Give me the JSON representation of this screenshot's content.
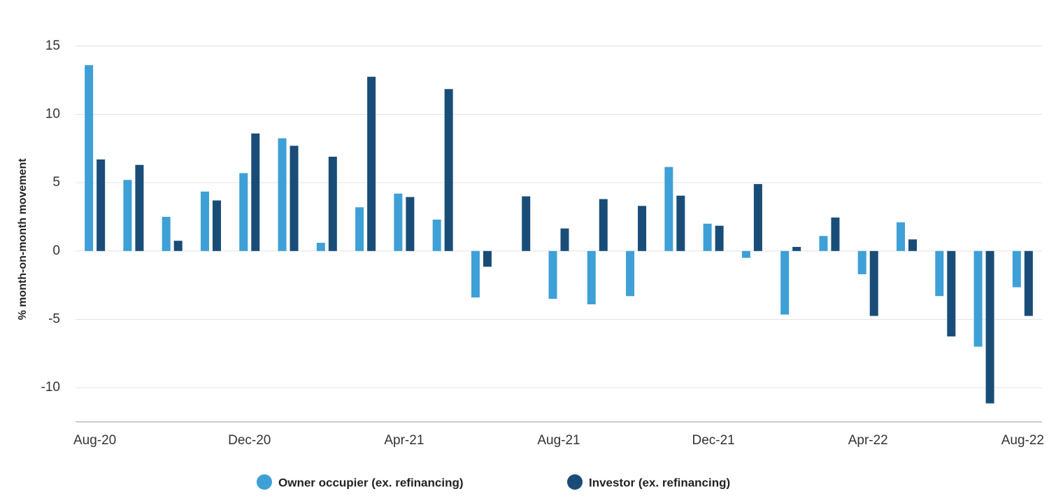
{
  "chart_data": {
    "type": "bar",
    "y_axis_label": "% month-on-month movement",
    "categories": [
      "Aug-20",
      null,
      null,
      null,
      "Dec-20",
      null,
      null,
      null,
      "Apr-21",
      null,
      null,
      null,
      "Aug-21",
      null,
      null,
      null,
      "Dec-21",
      null,
      null,
      null,
      "Apr-22",
      null,
      null,
      null,
      "Aug-22"
    ],
    "series": [
      {
        "name": "Owner occupier (ex. refinancing)",
        "color": "#3ea0d6",
        "values": [
          13.6,
          5.2,
          2.5,
          4.35,
          5.7,
          8.25,
          0.6,
          3.2,
          4.2,
          2.3,
          -3.4,
          0,
          -3.5,
          -3.9,
          -3.3,
          6.15,
          2.0,
          -0.5,
          -4.65,
          1.1,
          -1.7,
          2.1,
          -3.3,
          -7.0,
          -2.65
        ]
      },
      {
        "name": "Investor (ex. refinancing)",
        "color": "#194d78",
        "values": [
          6.7,
          6.3,
          0.75,
          3.7,
          8.6,
          7.7,
          6.9,
          12.75,
          3.95,
          11.85,
          -1.15,
          4.0,
          1.65,
          3.8,
          3.3,
          4.05,
          1.85,
          4.9,
          0.3,
          2.45,
          -4.75,
          0.85,
          -6.25,
          -11.15,
          -4.75
        ]
      }
    ],
    "ylim": [
      -12.5,
      15.5
    ],
    "yticks": [
      -10,
      -5,
      0,
      5,
      10,
      15
    ],
    "grid": true,
    "legend": "bottom"
  }
}
